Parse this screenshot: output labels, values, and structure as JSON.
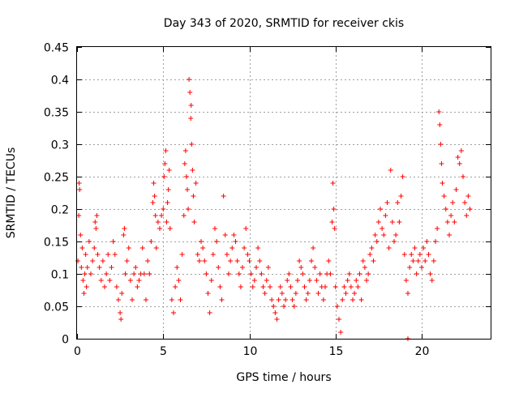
{
  "chart_data": {
    "type": "scatter",
    "title": "Day 343 of 2020, SRMTID for receiver ckis",
    "xlabel": "GPS time / hours",
    "ylabel": "SRMTID / TECUs",
    "xlim": [
      0,
      24
    ],
    "ylim": [
      0,
      0.45
    ],
    "xticks": [
      "0",
      "5",
      "10",
      "15",
      "20"
    ],
    "xtick_values": [
      0,
      5,
      10,
      15,
      20
    ],
    "yticks": [
      "0",
      "0.05",
      "0.1",
      "0.15",
      "0.2",
      "0.25",
      "0.3",
      "0.35",
      "0.4",
      "0.45"
    ],
    "ytick_values": [
      0,
      0.05,
      0.1,
      0.15,
      0.2,
      0.25,
      0.3,
      0.35,
      0.4,
      0.45
    ],
    "grid": true,
    "marker": "+",
    "color": "#ff0000",
    "series": [
      {
        "name": "SRMTID",
        "points": [
          [
            0.05,
            0.12
          ],
          [
            0.1,
            0.19
          ],
          [
            0.12,
            0.24
          ],
          [
            0.15,
            0.23
          ],
          [
            0.2,
            0.16
          ],
          [
            0.25,
            0.11
          ],
          [
            0.3,
            0.14
          ],
          [
            0.35,
            0.09
          ],
          [
            0.4,
            0.07
          ],
          [
            0.45,
            0.1
          ],
          [
            0.5,
            0.13
          ],
          [
            0.55,
            0.08
          ],
          [
            0.6,
            0.11
          ],
          [
            0.7,
            0.15
          ],
          [
            0.8,
            0.1
          ],
          [
            0.9,
            0.12
          ],
          [
            1.0,
            0.14
          ],
          [
            1.05,
            0.18
          ],
          [
            1.1,
            0.17
          ],
          [
            1.15,
            0.19
          ],
          [
            1.2,
            0.13
          ],
          [
            1.3,
            0.11
          ],
          [
            1.4,
            0.09
          ],
          [
            1.5,
            0.12
          ],
          [
            1.6,
            0.08
          ],
          [
            1.7,
            0.1
          ],
          [
            1.8,
            0.13
          ],
          [
            1.9,
            0.09
          ],
          [
            2.0,
            0.11
          ],
          [
            2.1,
            0.15
          ],
          [
            2.2,
            0.13
          ],
          [
            2.3,
            0.08
          ],
          [
            2.4,
            0.06
          ],
          [
            2.5,
            0.04
          ],
          [
            2.55,
            0.03
          ],
          [
            2.6,
            0.07
          ],
          [
            2.7,
            0.16
          ],
          [
            2.75,
            0.17
          ],
          [
            2.8,
            0.1
          ],
          [
            2.9,
            0.12
          ],
          [
            3.0,
            0.14
          ],
          [
            3.1,
            0.09
          ],
          [
            3.2,
            0.06
          ],
          [
            3.3,
            0.1
          ],
          [
            3.4,
            0.11
          ],
          [
            3.5,
            0.08
          ],
          [
            3.6,
            0.09
          ],
          [
            3.7,
            0.1
          ],
          [
            3.8,
            0.14
          ],
          [
            3.9,
            0.1
          ],
          [
            4.0,
            0.06
          ],
          [
            4.1,
            0.12
          ],
          [
            4.2,
            0.1
          ],
          [
            4.3,
            0.15
          ],
          [
            4.4,
            0.21
          ],
          [
            4.45,
            0.24
          ],
          [
            4.5,
            0.22
          ],
          [
            4.55,
            0.19
          ],
          [
            4.6,
            0.14
          ],
          [
            4.7,
            0.18
          ],
          [
            4.8,
            0.17
          ],
          [
            4.9,
            0.19
          ],
          [
            5.0,
            0.2
          ],
          [
            5.05,
            0.25
          ],
          [
            5.1,
            0.27
          ],
          [
            5.15,
            0.29
          ],
          [
            5.2,
            0.18
          ],
          [
            5.25,
            0.21
          ],
          [
            5.3,
            0.23
          ],
          [
            5.35,
            0.26
          ],
          [
            5.4,
            0.17
          ],
          [
            5.5,
            0.06
          ],
          [
            5.6,
            0.04
          ],
          [
            5.7,
            0.08
          ],
          [
            5.8,
            0.11
          ],
          [
            5.9,
            0.09
          ],
          [
            6.0,
            0.06
          ],
          [
            6.1,
            0.13
          ],
          [
            6.2,
            0.19
          ],
          [
            6.25,
            0.27
          ],
          [
            6.3,
            0.29
          ],
          [
            6.35,
            0.25
          ],
          [
            6.4,
            0.23
          ],
          [
            6.45,
            0.2
          ],
          [
            6.5,
            0.4
          ],
          [
            6.55,
            0.38
          ],
          [
            6.6,
            0.34
          ],
          [
            6.62,
            0.36
          ],
          [
            6.65,
            0.3
          ],
          [
            6.7,
            0.26
          ],
          [
            6.75,
            0.22
          ],
          [
            6.8,
            0.18
          ],
          [
            6.9,
            0.24
          ],
          [
            7.0,
            0.13
          ],
          [
            7.1,
            0.12
          ],
          [
            7.2,
            0.15
          ],
          [
            7.3,
            0.14
          ],
          [
            7.4,
            0.12
          ],
          [
            7.5,
            0.1
          ],
          [
            7.6,
            0.07
          ],
          [
            7.7,
            0.04
          ],
          [
            7.8,
            0.09
          ],
          [
            7.9,
            0.13
          ],
          [
            8.0,
            0.17
          ],
          [
            8.1,
            0.15
          ],
          [
            8.2,
            0.11
          ],
          [
            8.3,
            0.08
          ],
          [
            8.4,
            0.06
          ],
          [
            8.5,
            0.22
          ],
          [
            8.6,
            0.16
          ],
          [
            8.7,
            0.13
          ],
          [
            8.8,
            0.1
          ],
          [
            8.9,
            0.12
          ],
          [
            9.0,
            0.14
          ],
          [
            9.1,
            0.16
          ],
          [
            9.2,
            0.15
          ],
          [
            9.3,
            0.12
          ],
          [
            9.4,
            0.1
          ],
          [
            9.5,
            0.08
          ],
          [
            9.6,
            0.11
          ],
          [
            9.7,
            0.14
          ],
          [
            9.8,
            0.17
          ],
          [
            9.9,
            0.13
          ],
          [
            10.0,
            0.12
          ],
          [
            10.1,
            0.1
          ],
          [
            10.2,
            0.08
          ],
          [
            10.3,
            0.09
          ],
          [
            10.4,
            0.11
          ],
          [
            10.5,
            0.14
          ],
          [
            10.6,
            0.12
          ],
          [
            10.7,
            0.1
          ],
          [
            10.8,
            0.08
          ],
          [
            10.9,
            0.07
          ],
          [
            11.0,
            0.09
          ],
          [
            11.1,
            0.11
          ],
          [
            11.2,
            0.08
          ],
          [
            11.3,
            0.06
          ],
          [
            11.4,
            0.05
          ],
          [
            11.5,
            0.04
          ],
          [
            11.6,
            0.03
          ],
          [
            11.7,
            0.06
          ],
          [
            11.8,
            0.08
          ],
          [
            11.9,
            0.07
          ],
          [
            12.0,
            0.05
          ],
          [
            12.1,
            0.06
          ],
          [
            12.2,
            0.09
          ],
          [
            12.3,
            0.1
          ],
          [
            12.4,
            0.08
          ],
          [
            12.5,
            0.06
          ],
          [
            12.6,
            0.05
          ],
          [
            12.7,
            0.07
          ],
          [
            12.8,
            0.09
          ],
          [
            12.9,
            0.12
          ],
          [
            13.0,
            0.11
          ],
          [
            13.1,
            0.1
          ],
          [
            13.2,
            0.08
          ],
          [
            13.3,
            0.06
          ],
          [
            13.4,
            0.07
          ],
          [
            13.5,
            0.09
          ],
          [
            13.6,
            0.12
          ],
          [
            13.7,
            0.14
          ],
          [
            13.8,
            0.11
          ],
          [
            13.9,
            0.09
          ],
          [
            14.0,
            0.07
          ],
          [
            14.1,
            0.1
          ],
          [
            14.2,
            0.08
          ],
          [
            14.3,
            0.06
          ],
          [
            14.4,
            0.08
          ],
          [
            14.5,
            0.1
          ],
          [
            14.6,
            0.12
          ],
          [
            14.7,
            0.1
          ],
          [
            14.8,
            0.18
          ],
          [
            14.85,
            0.24
          ],
          [
            14.9,
            0.2
          ],
          [
            14.95,
            0.17
          ],
          [
            15.0,
            0.08
          ],
          [
            15.1,
            0.05
          ],
          [
            15.2,
            0.03
          ],
          [
            15.3,
            0.01
          ],
          [
            15.4,
            0.06
          ],
          [
            15.5,
            0.08
          ],
          [
            15.6,
            0.07
          ],
          [
            15.7,
            0.09
          ],
          [
            15.8,
            0.1
          ],
          [
            15.9,
            0.08
          ],
          [
            16.0,
            0.06
          ],
          [
            16.1,
            0.07
          ],
          [
            16.2,
            0.09
          ],
          [
            16.3,
            0.08
          ],
          [
            16.4,
            0.1
          ],
          [
            16.5,
            0.06
          ],
          [
            16.6,
            0.12
          ],
          [
            16.7,
            0.11
          ],
          [
            16.8,
            0.09
          ],
          [
            16.9,
            0.1
          ],
          [
            17.0,
            0.13
          ],
          [
            17.1,
            0.14
          ],
          [
            17.2,
            0.12
          ],
          [
            17.3,
            0.16
          ],
          [
            17.4,
            0.15
          ],
          [
            17.5,
            0.18
          ],
          [
            17.6,
            0.2
          ],
          [
            17.7,
            0.17
          ],
          [
            17.8,
            0.16
          ],
          [
            17.9,
            0.19
          ],
          [
            18.0,
            0.21
          ],
          [
            18.1,
            0.14
          ],
          [
            18.2,
            0.26
          ],
          [
            18.3,
            0.18
          ],
          [
            18.4,
            0.15
          ],
          [
            18.5,
            0.16
          ],
          [
            18.6,
            0.21
          ],
          [
            18.7,
            0.18
          ],
          [
            18.8,
            0.22
          ],
          [
            18.9,
            0.25
          ],
          [
            19.0,
            0.13
          ],
          [
            19.1,
            0.09
          ],
          [
            19.2,
            0.07
          ],
          [
            19.3,
            0.11
          ],
          [
            19.4,
            0.13
          ],
          [
            19.5,
            0.12
          ],
          [
            19.6,
            0.14
          ],
          [
            19.7,
            0.1
          ],
          [
            19.8,
            0.12
          ],
          [
            19.9,
            0.13
          ],
          [
            20.0,
            0.11
          ],
          [
            20.1,
            0.14
          ],
          [
            20.2,
            0.12
          ],
          [
            20.3,
            0.15
          ],
          [
            20.4,
            0.13
          ],
          [
            20.5,
            0.1
          ],
          [
            20.6,
            0.09
          ],
          [
            20.7,
            0.12
          ],
          [
            20.8,
            0.15
          ],
          [
            20.9,
            0.17
          ],
          [
            21.0,
            0.35
          ],
          [
            21.05,
            0.33
          ],
          [
            21.1,
            0.3
          ],
          [
            21.15,
            0.27
          ],
          [
            21.2,
            0.24
          ],
          [
            21.3,
            0.22
          ],
          [
            21.4,
            0.2
          ],
          [
            21.5,
            0.18
          ],
          [
            21.6,
            0.16
          ],
          [
            21.7,
            0.19
          ],
          [
            21.8,
            0.21
          ],
          [
            21.9,
            0.18
          ],
          [
            22.0,
            0.23
          ],
          [
            22.1,
            0.28
          ],
          [
            22.2,
            0.27
          ],
          [
            22.3,
            0.29
          ],
          [
            22.4,
            0.25
          ],
          [
            22.5,
            0.21
          ],
          [
            22.6,
            0.19
          ],
          [
            22.7,
            0.22
          ],
          [
            22.8,
            0.2
          ],
          [
            19.2,
            0.0
          ]
        ]
      }
    ]
  }
}
